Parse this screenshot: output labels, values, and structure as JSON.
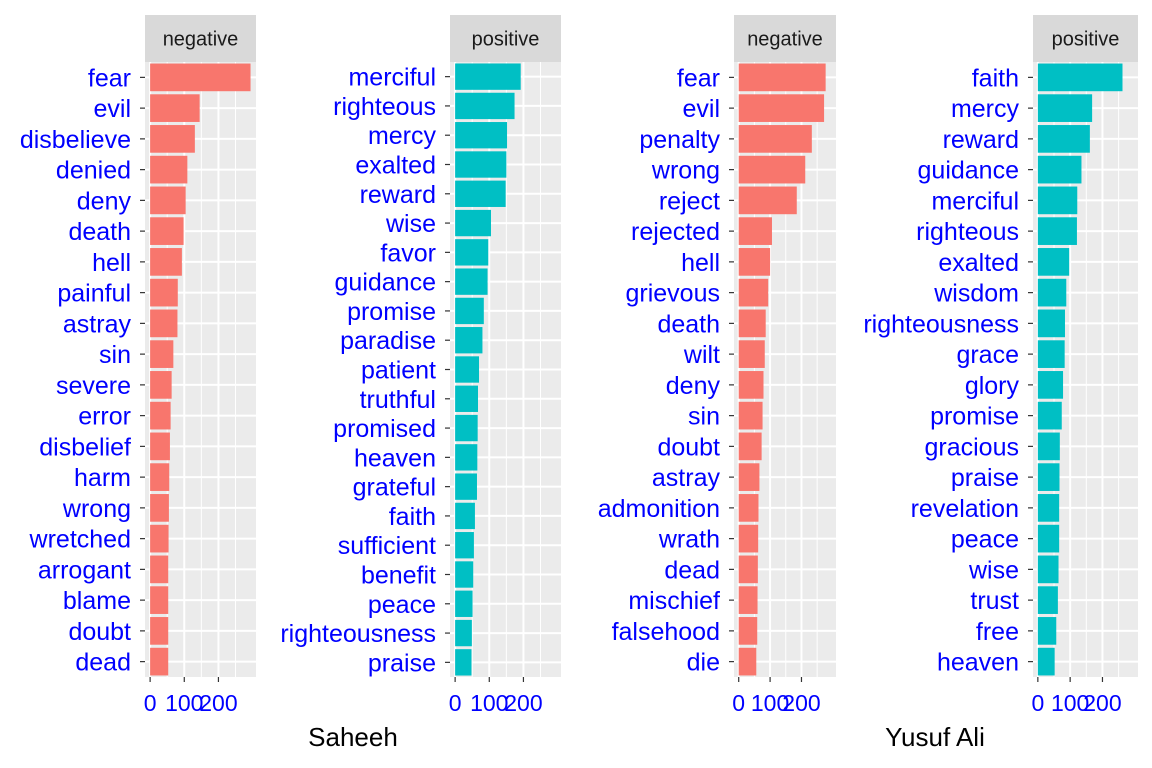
{
  "chart_data": {
    "type": "bar",
    "orientation": "horizontal",
    "grid": true,
    "colors": {
      "negative": "#F8766D",
      "positive": "#00BFC4",
      "panel_bg": "#EBEBEB",
      "strip_bg": "#D9D9D9",
      "label": "#0000FF"
    },
    "groups": [
      {
        "xlabel": "Saheeh",
        "panels": [
          {
            "sentiment": "negative",
            "strip_label": "negative",
            "xlim": [
              -15,
              310
            ],
            "xticks": [
              0,
              100,
              200
            ],
            "xtick_labels": [
              "0",
              "100",
              "200"
            ],
            "categories": [
              "fear",
              "evil",
              "disbelieve",
              "denied",
              "deny",
              "death",
              "hell",
              "painful",
              "astray",
              "sin",
              "severe",
              "error",
              "disbelief",
              "harm",
              "wrong",
              "wretched",
              "arrogant",
              "blame",
              "doubt",
              "dead"
            ],
            "values": [
              294,
              145,
              131,
              109,
              104,
              98,
              93,
              81,
              80,
              68,
              63,
              60,
              58,
              56,
              55,
              54,
              53,
              53,
              53,
              53
            ]
          },
          {
            "sentiment": "positive",
            "strip_label": "positive",
            "xlim": [
              -15,
              310
            ],
            "xticks": [
              0,
              100,
              200
            ],
            "xtick_labels": [
              "0",
              "100",
              "200"
            ],
            "categories": [
              "merciful",
              "righteous",
              "mercy",
              "exalted",
              "reward",
              "wise",
              "favor",
              "guidance",
              "promise",
              "paradise",
              "patient",
              "truthful",
              "promised",
              "heaven",
              "grateful",
              "faith",
              "sufficient",
              "benefit",
              "peace",
              "righteousness",
              "praise"
            ],
            "values": [
              192,
              174,
              152,
              150,
              148,
              105,
              97,
              95,
              84,
              80,
              70,
              67,
              66,
              65,
              64,
              58,
              55,
              53,
              51,
              49,
              48
            ]
          }
        ]
      },
      {
        "xlabel": "Yusuf Ali",
        "panels": [
          {
            "sentiment": "negative",
            "strip_label": "negative",
            "xlim": [
              -15,
              310
            ],
            "xticks": [
              0,
              100,
              200
            ],
            "xtick_labels": [
              "0",
              "100",
              "200"
            ],
            "categories": [
              "fear",
              "evil",
              "penalty",
              "wrong",
              "reject",
              "rejected",
              "hell",
              "grievous",
              "death",
              "wilt",
              "deny",
              "sin",
              "doubt",
              "astray",
              "admonition",
              "wrath",
              "dead",
              "mischief",
              "falsehood",
              "die"
            ],
            "values": [
              277,
              272,
              233,
              212,
              185,
              106,
              100,
              94,
              86,
              83,
              79,
              76,
              73,
              66,
              63,
              62,
              61,
              60,
              59,
              56
            ]
          },
          {
            "sentiment": "positive",
            "strip_label": "positive",
            "xlim": [
              -15,
              310
            ],
            "xticks": [
              0,
              100,
              200
            ],
            "xtick_labels": [
              "0",
              "100",
              "200"
            ],
            "categories": [
              "faith",
              "mercy",
              "reward",
              "guidance",
              "merciful",
              "righteous",
              "exalted",
              "wisdom",
              "righteousness",
              "grace",
              "glory",
              "promise",
              "gracious",
              "praise",
              "revelation",
              "peace",
              "wise",
              "trust",
              "free",
              "heaven"
            ],
            "values": [
              262,
              168,
              161,
              135,
              122,
              121,
              97,
              88,
              84,
              83,
              78,
              74,
              68,
              67,
              66,
              66,
              64,
              62,
              57,
              52
            ]
          }
        ]
      }
    ]
  }
}
